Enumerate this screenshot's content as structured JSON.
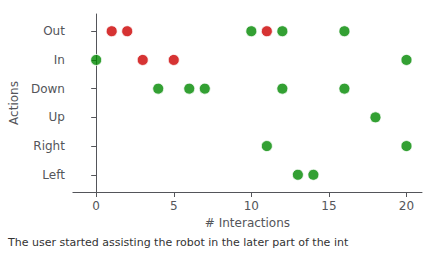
{
  "chart_data": {
    "type": "scatter",
    "xlabel": "# Interactions",
    "ylabel": "Actions",
    "caption": "The user started assisting the robot in the later part of the int",
    "x": [
      1,
      2,
      10,
      11,
      12,
      16,
      0,
      3,
      5,
      20,
      4,
      6,
      7,
      12,
      16,
      18,
      11,
      20,
      13,
      14
    ],
    "values": [
      6,
      6,
      6,
      6,
      6,
      6,
      5,
      5,
      5,
      5,
      4,
      4,
      4,
      4,
      4,
      3,
      2,
      2,
      1,
      1
    ],
    "colors": [
      "#cc0000",
      "#cc0000",
      "#008800",
      "#cc0000",
      "#008800",
      "#008800",
      "#008800",
      "#cc0000",
      "#cc0000",
      "#008800",
      "#008800",
      "#008800",
      "#008800",
      "#008800",
      "#008800",
      "#008800",
      "#008800",
      "#008800",
      "#008800",
      "#008800"
    ],
    "xlim": [
      -1.5,
      21
    ],
    "ylim": [
      0.4,
      6.6
    ],
    "xticks": [
      0,
      5,
      10,
      15,
      20
    ],
    "yticks": [
      {
        "value": 1,
        "label": "Left"
      },
      {
        "value": 2,
        "label": "Right"
      },
      {
        "value": 3,
        "label": "Up"
      },
      {
        "value": 4,
        "label": "Down"
      },
      {
        "value": 5,
        "label": "In"
      },
      {
        "value": 6,
        "label": "Out"
      }
    ],
    "grid": false
  }
}
